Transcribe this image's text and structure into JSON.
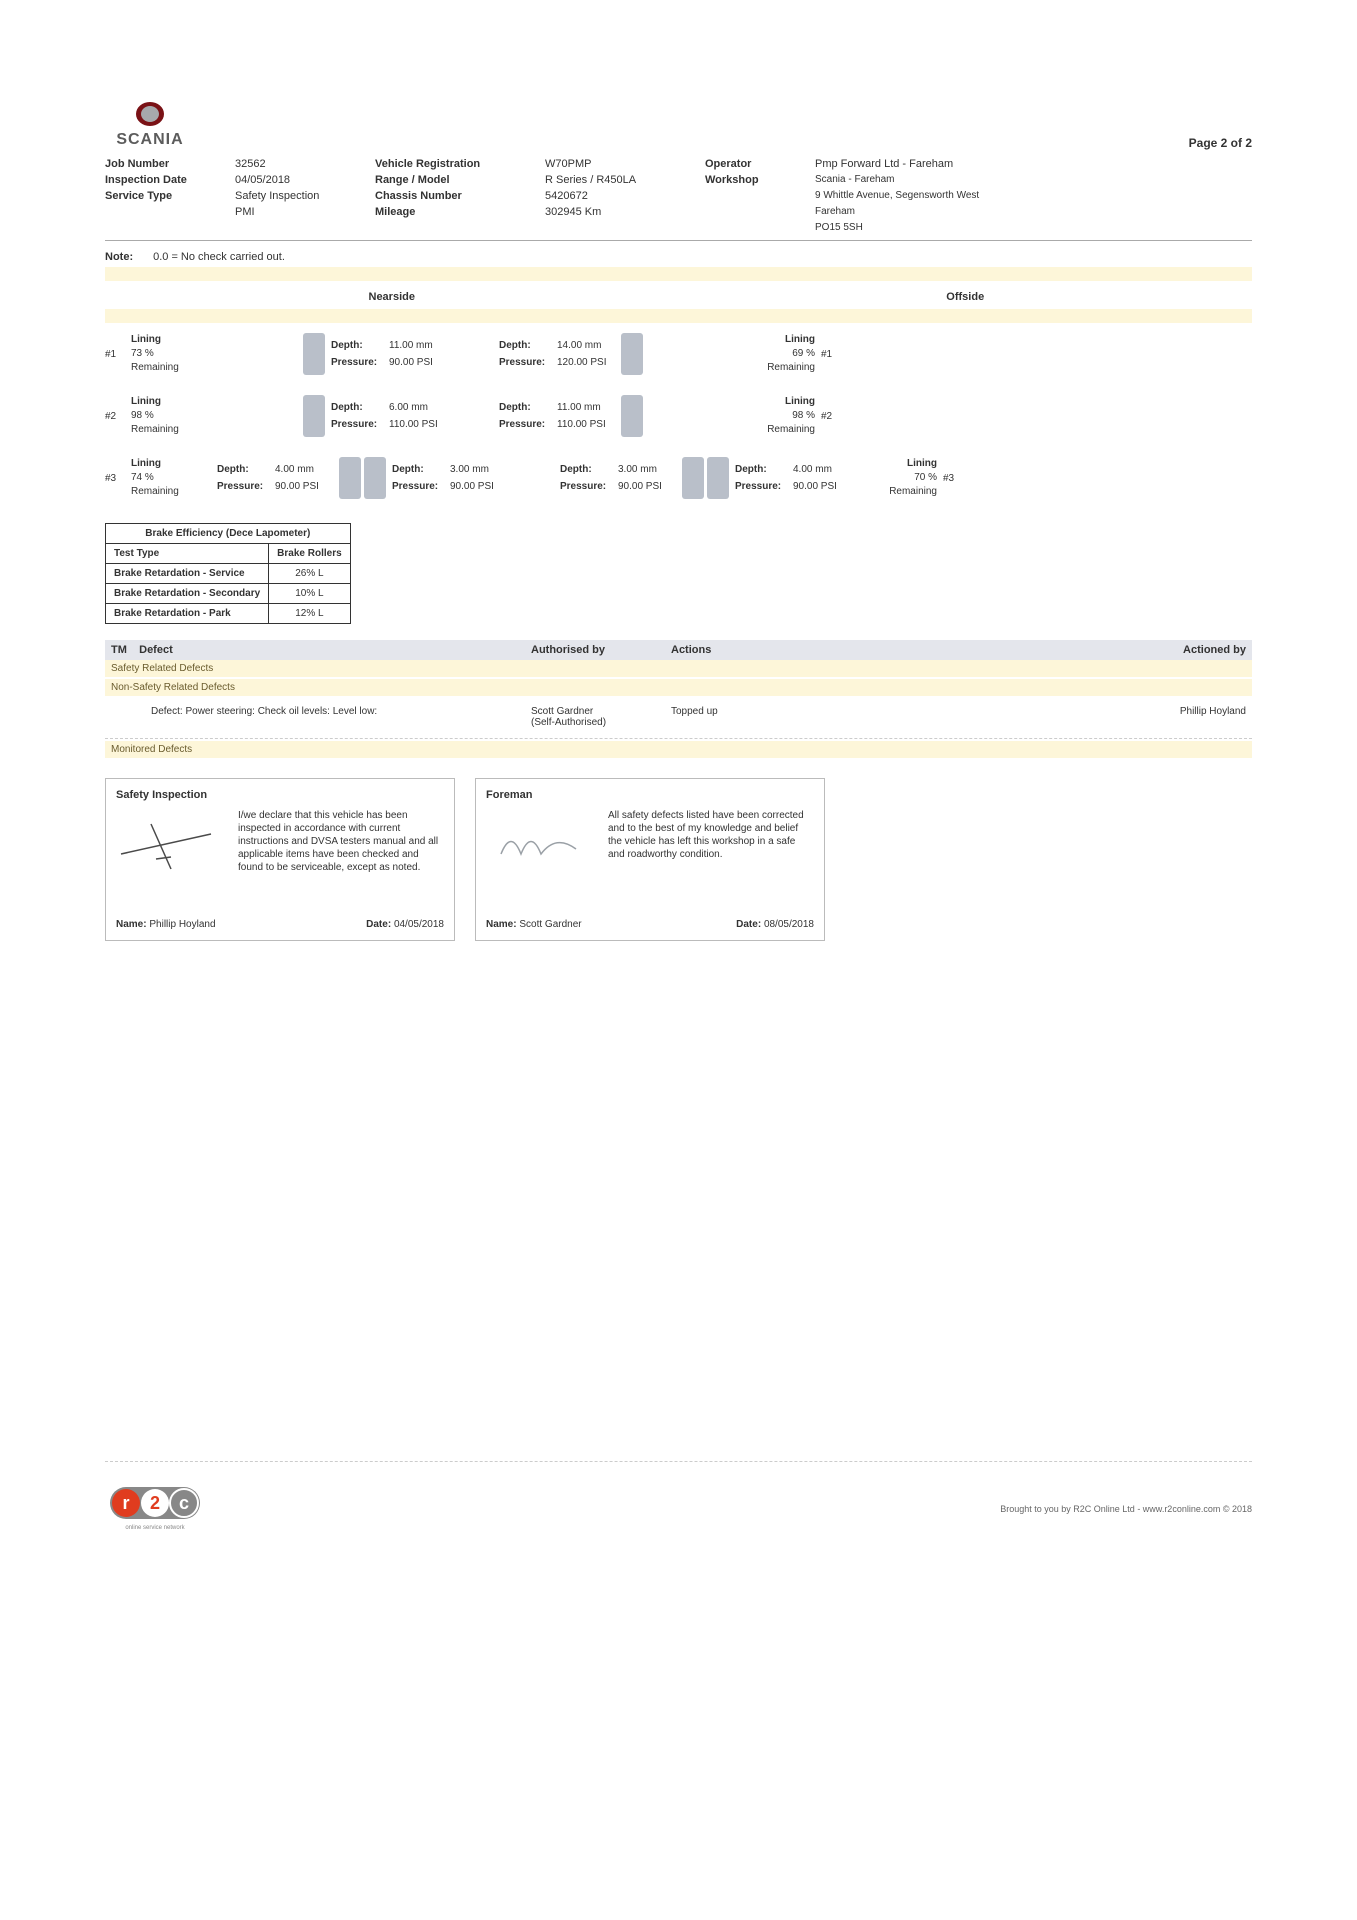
{
  "colors": {
    "yellow_bar": "#fdf6d9",
    "grey_header": "#e4e6ec",
    "tyre": "#b9bfc9",
    "text": "#333333",
    "border": "#bbbbbb"
  },
  "page_indicator": "Page 2 of 2",
  "info": {
    "job_number_label": "Job Number",
    "job_number": "32562",
    "inspection_date_label": "Inspection Date",
    "inspection_date": "04/05/2018",
    "service_type_label": "Service Type",
    "service_type1": "Safety Inspection",
    "service_type2": "PMI",
    "vehicle_reg_label": "Vehicle Registration",
    "vehicle_reg": "W70PMP",
    "range_model_label": "Range / Model",
    "range_model": "R Series / R450LA",
    "chassis_label": "Chassis Number",
    "chassis": "5420672",
    "mileage_label": "Mileage",
    "mileage": "302945 Km",
    "operator_label": "Operator",
    "operator": "Pmp Forward Ltd - Fareham",
    "workshop_label": "Workshop",
    "workshop1": "Scania - Fareham",
    "workshop2": "9 Whittle Avenue, Segensworth West",
    "workshop3": "Fareham",
    "workshop4": "PO15 5SH"
  },
  "note": {
    "label": "Note:",
    "text": "0.0 = No check carried out."
  },
  "sides": {
    "nearside": "Nearside",
    "offside": "Offside"
  },
  "labels": {
    "depth": "Depth:",
    "pressure": "Pressure:",
    "lining": "Lining",
    "remaining": "Remaining"
  },
  "axles": [
    {
      "num": "#1",
      "near": {
        "lining_pct": "73 %",
        "inner": null,
        "outer": {
          "depth": "11.00 mm",
          "pressure": "90.00 PSI"
        }
      },
      "off": {
        "lining_pct": "69 %",
        "outer": {
          "depth": "14.00 mm",
          "pressure": "120.00 PSI"
        },
        "inner": null
      }
    },
    {
      "num": "#2",
      "near": {
        "lining_pct": "98 %",
        "inner": null,
        "outer": {
          "depth": "6.00 mm",
          "pressure": "110.00 PSI"
        }
      },
      "off": {
        "lining_pct": "98 %",
        "outer": {
          "depth": "11.00 mm",
          "pressure": "110.00 PSI"
        },
        "inner": null
      }
    },
    {
      "num": "#3",
      "near": {
        "lining_pct": "74 %",
        "inner": {
          "depth": "4.00 mm",
          "pressure": "90.00 PSI"
        },
        "outer": {
          "depth": "3.00 mm",
          "pressure": "90.00 PSI"
        }
      },
      "off": {
        "lining_pct": "70 %",
        "outer": {
          "depth": "3.00 mm",
          "pressure": "90.00 PSI"
        },
        "inner": {
          "depth": "4.00 mm",
          "pressure": "90.00 PSI"
        }
      }
    }
  ],
  "brake_table": {
    "title": "Brake Efficiency (Dece Lapometer)",
    "test_type_label": "Test Type",
    "rollers_label": "Brake Rollers",
    "rows": [
      {
        "label": "Brake Retardation - Service",
        "value": "26% L"
      },
      {
        "label": "Brake Retardation - Secondary",
        "value": "10% L"
      },
      {
        "label": "Brake Retardation - Park",
        "value": "12% L"
      }
    ]
  },
  "defects": {
    "header": {
      "tm": "TM",
      "defect": "Defect",
      "auth": "Authorised by",
      "actions": "Actions",
      "actioned": "Actioned by"
    },
    "safety_label": "Safety Related Defects",
    "nonsafety_label": "Non-Safety Related Defects",
    "row": {
      "defect": "Defect: Power steering: Check oil levels: Level low:",
      "auth1": "Scott Gardner",
      "auth2": "(Self-Authorised)",
      "action": "Topped up",
      "actioned": "Phillip Hoyland"
    },
    "monitored_label": "Monitored Defects"
  },
  "signatures": {
    "inspection": {
      "title": "Safety Inspection",
      "declaration": "I/we declare that this vehicle has been inspected in accordance with current instructions and DVSA testers manual and all applicable items have been checked and found to be serviceable, except as noted.",
      "name_label": "Name:",
      "name": "Phillip Hoyland",
      "date_label": "Date:",
      "date": "04/05/2018"
    },
    "foreman": {
      "title": "Foreman",
      "declaration": "All safety defects listed have been corrected and to the best of my knowledge and belief the vehicle has left this workshop in a safe and roadworthy condition.",
      "name_label": "Name:",
      "name": "Scott Gardner",
      "date_label": "Date:",
      "date": "08/05/2018"
    }
  },
  "footer": {
    "text": "Brought to you by R2C Online Ltd - www.r2conline.com © 2018",
    "r2c_tagline": "online service network"
  }
}
